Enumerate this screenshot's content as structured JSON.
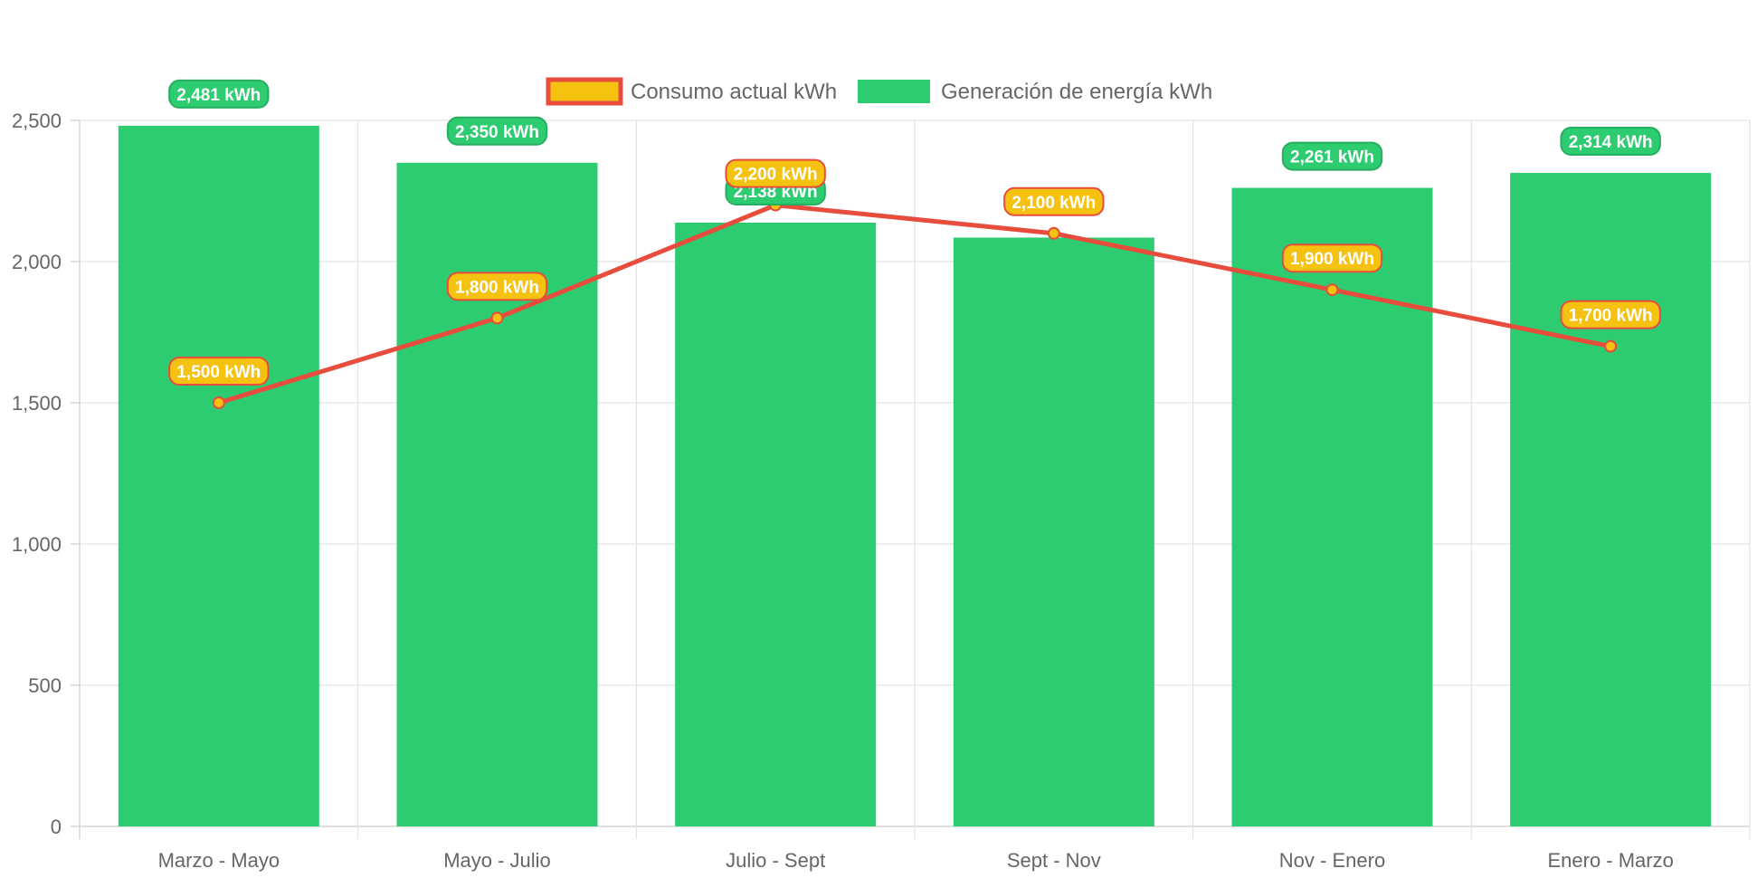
{
  "chart_data": {
    "type": "bar",
    "categories": [
      "Marzo - Mayo",
      "Mayo - Julio",
      "Julio - Sept",
      "Sept - Nov",
      "Nov - Enero",
      "Enero - Marzo"
    ],
    "series": [
      {
        "name": "Consumo actual kWh",
        "type": "line",
        "values": [
          1500,
          1800,
          2200,
          2100,
          1900,
          1700
        ],
        "labels": [
          "1,500 kWh",
          "1,800 kWh",
          "2,200 kWh",
          "2,100 kWh",
          "1,900 kWh",
          "1,700 kWh"
        ],
        "color": "#e74c3c",
        "fill": "#f5c211"
      },
      {
        "name": "Generación de energía kWh",
        "type": "bar",
        "values": [
          2481,
          2350,
          2138,
          2085,
          2261,
          2314
        ],
        "labels": [
          "2,481 kWh",
          "2,350 kWh",
          "2,138 kWh",
          "",
          "2,261 kWh",
          "2,314 kWh"
        ],
        "color": "#2ecc71",
        "border": "#27ae60"
      }
    ],
    "ylim": [
      0,
      2500
    ],
    "yticks": [
      "0",
      "500",
      "1,000",
      "1,500",
      "2,000",
      "2,500"
    ],
    "ytick_values": [
      0,
      500,
      1000,
      1500,
      2000,
      2500
    ],
    "grid": true,
    "legend": "top-center"
  }
}
